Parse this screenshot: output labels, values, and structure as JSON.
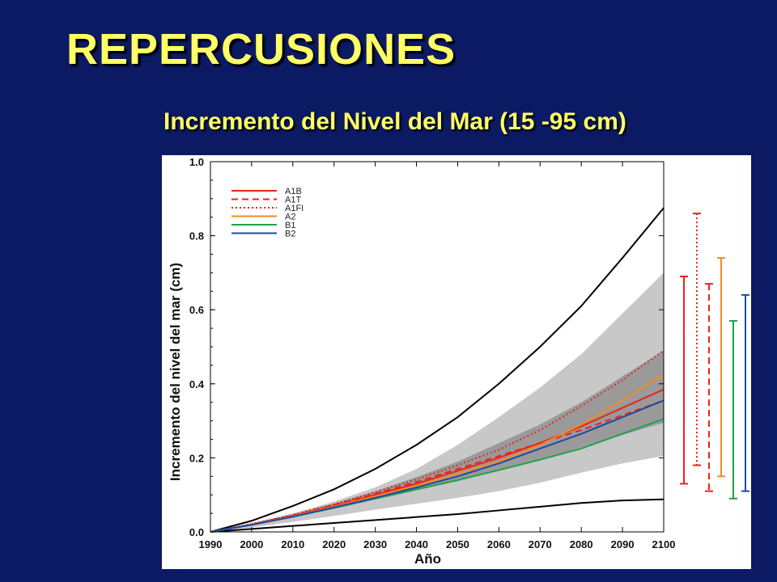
{
  "slide": {
    "title": "REPERCUSIONES",
    "subtitle": "Incremento del Nivel del Mar (15 -95 cm)"
  },
  "chart_data": {
    "type": "line",
    "xlabel": "Año",
    "ylabel": "Incremento del nivel del mar (cm)",
    "xlim": [
      1990,
      2100
    ],
    "ylim": [
      0.0,
      1.0
    ],
    "x_ticks": [
      "1990",
      "2000",
      "2010",
      "2020",
      "2030",
      "2040",
      "2050",
      "2060",
      "2070",
      "2080",
      "2090",
      "2100"
    ],
    "y_ticks": [
      "0.0",
      "0.2",
      "0.4",
      "0.6",
      "0.8",
      "1.0"
    ],
    "grid": false,
    "legend_position": "top-left",
    "series": [
      {
        "name": "A1B",
        "color": "#e8241c",
        "style": "solid",
        "x": [
          1990,
          2000,
          2010,
          2020,
          2030,
          2040,
          2050,
          2060,
          2070,
          2080,
          2090,
          2100
        ],
        "y": [
          0.0,
          0.02,
          0.044,
          0.07,
          0.1,
          0.13,
          0.165,
          0.2,
          0.24,
          0.285,
          0.335,
          0.385
        ]
      },
      {
        "name": "A1T",
        "color": "#e8241c",
        "style": "dashed",
        "x": [
          1990,
          2000,
          2010,
          2020,
          2030,
          2040,
          2050,
          2060,
          2070,
          2080,
          2090,
          2100
        ],
        "y": [
          0.0,
          0.02,
          0.045,
          0.072,
          0.103,
          0.135,
          0.17,
          0.205,
          0.24,
          0.275,
          0.315,
          0.355
        ]
      },
      {
        "name": "A1FI",
        "color": "#e8241c",
        "style": "dotted",
        "x": [
          1990,
          2000,
          2010,
          2020,
          2030,
          2040,
          2050,
          2060,
          2070,
          2080,
          2090,
          2100
        ],
        "y": [
          0.0,
          0.021,
          0.046,
          0.075,
          0.107,
          0.142,
          0.18,
          0.222,
          0.275,
          0.34,
          0.41,
          0.49
        ]
      },
      {
        "name": "A2",
        "color": "#f28b22",
        "style": "solid",
        "x": [
          1990,
          2000,
          2010,
          2020,
          2030,
          2040,
          2050,
          2060,
          2070,
          2080,
          2090,
          2100
        ],
        "y": [
          0.0,
          0.019,
          0.042,
          0.068,
          0.096,
          0.125,
          0.157,
          0.19,
          0.235,
          0.29,
          0.355,
          0.425
        ]
      },
      {
        "name": "B1",
        "color": "#1fa24a",
        "style": "solid",
        "x": [
          1990,
          2000,
          2010,
          2020,
          2030,
          2040,
          2050,
          2060,
          2070,
          2080,
          2090,
          2100
        ],
        "y": [
          0.0,
          0.019,
          0.041,
          0.065,
          0.09,
          0.115,
          0.14,
          0.167,
          0.195,
          0.225,
          0.265,
          0.305
        ]
      },
      {
        "name": "B2",
        "color": "#2047a8",
        "style": "solid",
        "x": [
          1990,
          2000,
          2010,
          2020,
          2030,
          2040,
          2050,
          2060,
          2070,
          2080,
          2090,
          2100
        ],
        "y": [
          0.0,
          0.019,
          0.041,
          0.066,
          0.092,
          0.12,
          0.15,
          0.185,
          0.225,
          0.265,
          0.31,
          0.355
        ]
      }
    ],
    "envelope_lines": [
      {
        "color": "#000000",
        "x": [
          1990,
          2000,
          2010,
          2020,
          2030,
          2040,
          2050,
          2060,
          2070,
          2080,
          2090,
          2100
        ],
        "y": [
          0.0,
          0.03,
          0.07,
          0.115,
          0.17,
          0.235,
          0.31,
          0.4,
          0.5,
          0.61,
          0.74,
          0.875
        ]
      },
      {
        "color": "#000000",
        "x": [
          1990,
          2000,
          2010,
          2020,
          2030,
          2040,
          2050,
          2060,
          2070,
          2080,
          2090,
          2100
        ],
        "y": [
          0.0,
          0.008,
          0.016,
          0.024,
          0.032,
          0.04,
          0.048,
          0.058,
          0.068,
          0.078,
          0.085,
          0.088
        ]
      }
    ],
    "bands": [
      {
        "color": "#c8c8c8",
        "x": [
          1990,
          2000,
          2010,
          2020,
          2030,
          2040,
          2050,
          2060,
          2070,
          2080,
          2090,
          2100
        ],
        "upper": [
          0.0,
          0.024,
          0.05,
          0.082,
          0.12,
          0.17,
          0.235,
          0.31,
          0.39,
          0.48,
          0.59,
          0.7
        ],
        "lower": [
          0.0,
          0.012,
          0.027,
          0.043,
          0.06,
          0.076,
          0.092,
          0.11,
          0.133,
          0.16,
          0.185,
          0.205
        ]
      },
      {
        "color": "#9a9a9a",
        "x": [
          1990,
          2000,
          2010,
          2020,
          2030,
          2040,
          2050,
          2060,
          2070,
          2080,
          2090,
          2100
        ],
        "upper": [
          0.0,
          0.02,
          0.046,
          0.077,
          0.11,
          0.148,
          0.19,
          0.24,
          0.29,
          0.35,
          0.42,
          0.49
        ],
        "lower": [
          0.0,
          0.018,
          0.039,
          0.062,
          0.087,
          0.112,
          0.137,
          0.165,
          0.195,
          0.228,
          0.262,
          0.295
        ]
      }
    ],
    "range_bars": [
      {
        "scenario": "A1B",
        "color": "#e8241c",
        "style": "solid",
        "low": 0.13,
        "high": 0.69
      },
      {
        "scenario": "A1FI",
        "color": "#e8241c",
        "style": "dotted",
        "low": 0.18,
        "high": 0.86
      },
      {
        "scenario": "A1T",
        "color": "#e8241c",
        "style": "dashed",
        "low": 0.11,
        "high": 0.67
      },
      {
        "scenario": "A2",
        "color": "#f28b22",
        "style": "solid",
        "low": 0.15,
        "high": 0.74
      },
      {
        "scenario": "B1",
        "color": "#1fa24a",
        "style": "solid",
        "low": 0.09,
        "high": 0.57
      },
      {
        "scenario": "B2",
        "color": "#2047a8",
        "style": "solid",
        "low": 0.11,
        "high": 0.64
      }
    ]
  }
}
